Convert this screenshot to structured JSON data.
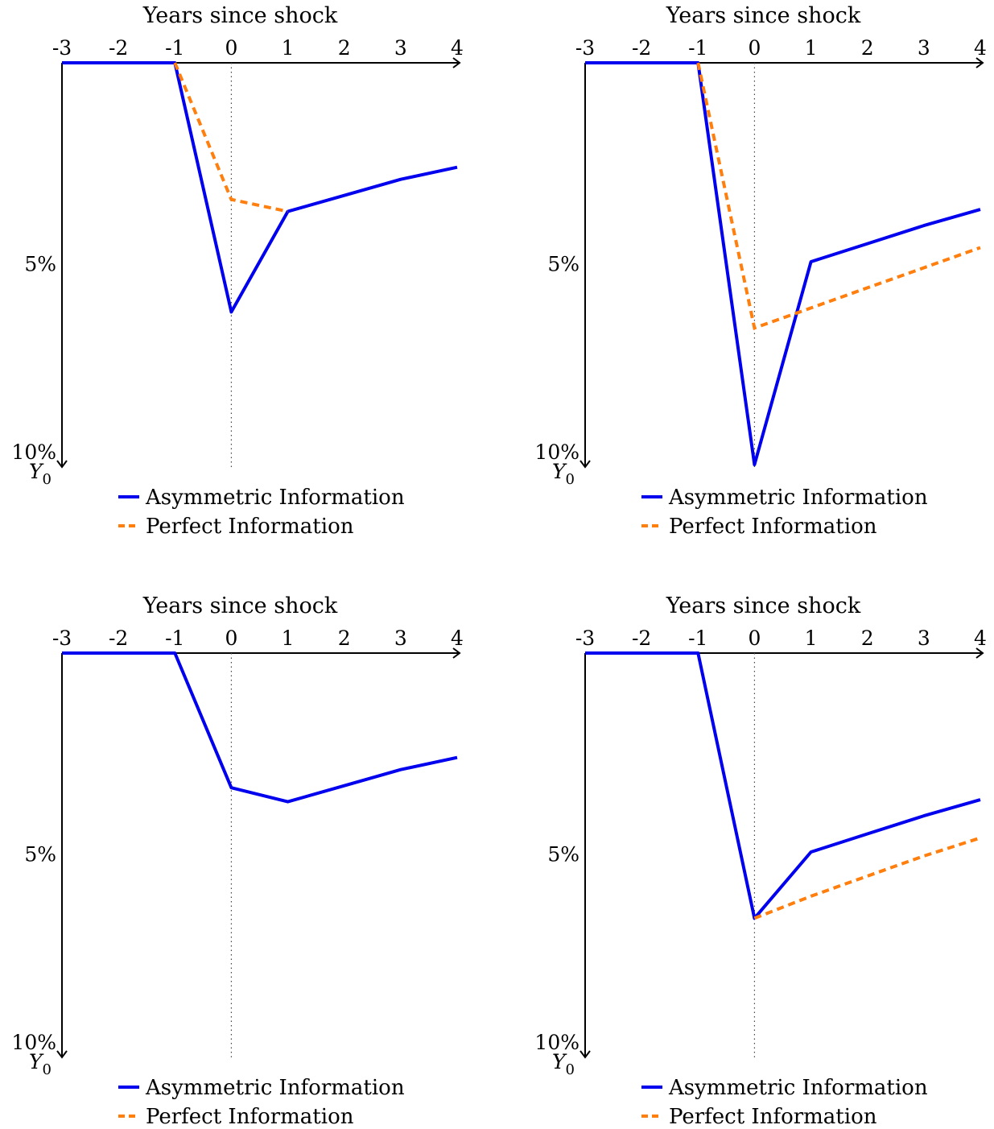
{
  "chart_data": [
    {
      "type": "line",
      "xlabel": "Years since shock",
      "x_ticks": [
        "-3",
        "-2",
        "-1",
        "0",
        "1",
        "2",
        "3",
        "4"
      ],
      "xlim": [
        -3,
        4
      ],
      "y_ticks": [
        "5%",
        "10%"
      ],
      "y_origin_label": "Y0",
      "y_reversed": true,
      "ylim": [
        0,
        10
      ],
      "legend_position": "bottom",
      "series": [
        {
          "name": "Asymmetric Information",
          "color": "#0000ee",
          "style": "solid",
          "x": [
            -3,
            -2,
            -1,
            0,
            1,
            2,
            3,
            4
          ],
          "y": [
            0,
            0,
            0,
            6.2,
            3.7,
            3.3,
            2.9,
            2.6
          ]
        },
        {
          "name": "Perfect Information",
          "color": "#ff7f0e",
          "style": "dashed",
          "x": [
            -1,
            0,
            1
          ],
          "y": [
            0,
            3.4,
            3.7
          ]
        }
      ]
    },
    {
      "type": "line",
      "xlabel": "Years since shock",
      "x_ticks": [
        "-3",
        "-2",
        "-1",
        "0",
        "1",
        "2",
        "3",
        "4"
      ],
      "xlim": [
        -3,
        4
      ],
      "y_ticks": [
        "5%",
        "10%"
      ],
      "y_origin_label": "Y0",
      "y_reversed": true,
      "ylim": [
        0,
        10
      ],
      "legend_position": "bottom",
      "series": [
        {
          "name": "Asymmetric Information",
          "color": "#0000ee",
          "style": "solid",
          "x": [
            -3,
            -2,
            -1,
            0,
            1,
            2,
            3,
            4
          ],
          "y": [
            0,
            0,
            0,
            10.0,
            4.95,
            4.5,
            4.05,
            3.65
          ]
        },
        {
          "name": "Perfect Information",
          "color": "#ff7f0e",
          "style": "dashed",
          "x": [
            -1,
            0,
            1,
            2,
            3,
            4
          ],
          "y": [
            0,
            6.6,
            6.1,
            5.6,
            5.1,
            4.6
          ]
        }
      ]
    },
    {
      "type": "line",
      "xlabel": "Years since shock",
      "x_ticks": [
        "-3",
        "-2",
        "-1",
        "0",
        "1",
        "2",
        "3",
        "4"
      ],
      "xlim": [
        -3,
        4
      ],
      "y_ticks": [
        "5%",
        "10%"
      ],
      "y_origin_label": "Y0",
      "y_reversed": true,
      "ylim": [
        0,
        10
      ],
      "legend_position": "bottom",
      "series": [
        {
          "name": "Asymmetric Information",
          "color": "#0000ee",
          "style": "solid",
          "x": [
            -3,
            -2,
            -1,
            0,
            1,
            2,
            3,
            4
          ],
          "y": [
            0,
            0,
            0,
            3.35,
            3.7,
            3.3,
            2.9,
            2.6
          ]
        },
        {
          "name": "Perfect Information",
          "color": "#ff7f0e",
          "style": "dashed",
          "x": [],
          "y": []
        }
      ]
    },
    {
      "type": "line",
      "xlabel": "Years since shock",
      "x_ticks": [
        "-3",
        "-2",
        "-1",
        "0",
        "1",
        "2",
        "3",
        "4"
      ],
      "xlim": [
        -3,
        4
      ],
      "y_ticks": [
        "5%",
        "10%"
      ],
      "y_origin_label": "Y0",
      "y_reversed": true,
      "ylim": [
        0,
        10
      ],
      "legend_position": "bottom",
      "series": [
        {
          "name": "Asymmetric Information",
          "color": "#0000ee",
          "style": "solid",
          "x": [
            -3,
            -2,
            -1,
            0,
            1,
            2,
            3,
            4
          ],
          "y": [
            0,
            0,
            0,
            6.6,
            4.95,
            4.5,
            4.05,
            3.65
          ]
        },
        {
          "name": "Perfect Information",
          "color": "#ff7f0e",
          "style": "dashed",
          "x": [
            0,
            1,
            2,
            3,
            4
          ],
          "y": [
            6.6,
            6.05,
            5.55,
            5.05,
            4.6
          ]
        }
      ]
    }
  ]
}
